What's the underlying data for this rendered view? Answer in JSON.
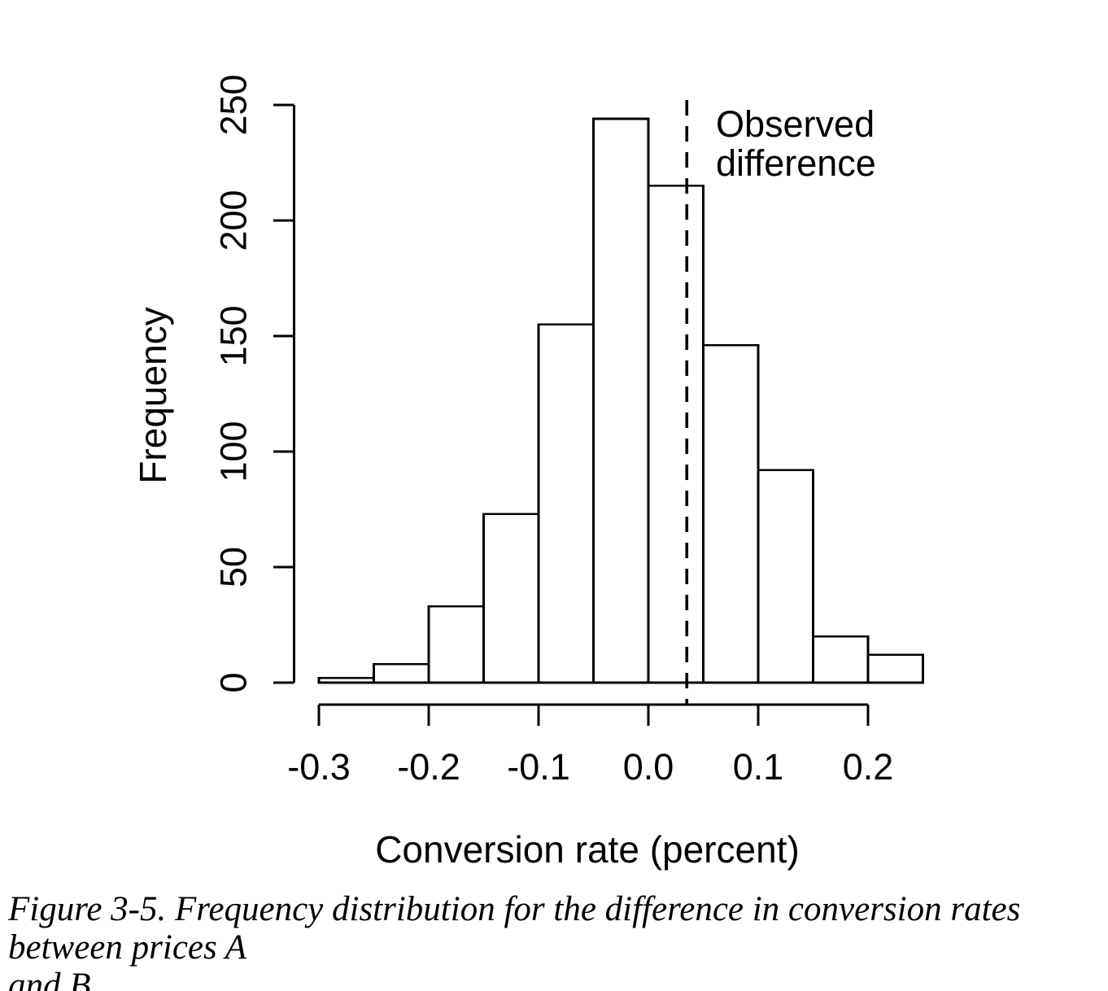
{
  "chart_data": {
    "type": "bar",
    "chart_kind": "histogram",
    "title": "",
    "xlabel": "Conversion rate (percent)",
    "ylabel": "Frequency",
    "bins": {
      "start": -0.3,
      "width": 0.05
    },
    "bin_edges": [
      -0.3,
      -0.25,
      -0.2,
      -0.15,
      -0.1,
      -0.05,
      0,
      0.05,
      0.1,
      0.15,
      0.2,
      0.25
    ],
    "counts": [
      2,
      8,
      33,
      73,
      155,
      244,
      215,
      146,
      92,
      20,
      12
    ],
    "x_ticks": [
      -0.3,
      -0.2,
      -0.1,
      0,
      0.1,
      0.2
    ],
    "y_ticks": [
      0,
      50,
      100,
      150,
      200,
      250
    ],
    "xlim": [
      -0.3,
      0.25
    ],
    "ylim": [
      0,
      250
    ],
    "grid": false,
    "legend": "none",
    "bar_fill": "#ffffff",
    "stroke_color": "#000000",
    "observed_difference": {
      "value": 0.035,
      "line_style": "dashed",
      "annotation": {
        "lines": [
          "Observed",
          "difference"
        ]
      }
    }
  },
  "caption": {
    "lines": [
      "Figure 3-5. Frequency distribution for the difference in conversion rates between prices A",
      "and B"
    ]
  }
}
